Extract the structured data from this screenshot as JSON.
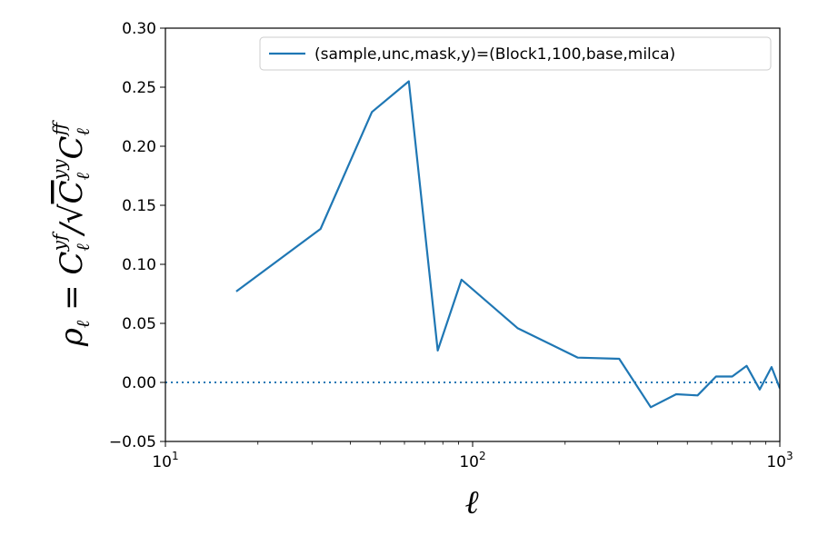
{
  "chart_data": {
    "type": "line",
    "xscale": "log",
    "xlim": [
      10,
      1000
    ],
    "ylim": [
      -0.05,
      0.3
    ],
    "xlabel": "ℓ",
    "ylabel": "ρℓ = Cℓ^yf / √(Cℓ^yy Cℓ^ff)",
    "x_ticks": [
      {
        "value": 10,
        "base": "10",
        "exp": "1"
      },
      {
        "value": 100,
        "base": "10",
        "exp": "2"
      },
      {
        "value": 1000,
        "base": "10",
        "exp": "3"
      }
    ],
    "y_ticks": [
      {
        "value": -0.05,
        "label": "−0.05"
      },
      {
        "value": 0.0,
        "label": "0.00"
      },
      {
        "value": 0.05,
        "label": "0.05"
      },
      {
        "value": 0.1,
        "label": "0.10"
      },
      {
        "value": 0.15,
        "label": "0.15"
      },
      {
        "value": 0.2,
        "label": "0.20"
      },
      {
        "value": 0.25,
        "label": "0.25"
      },
      {
        "value": 0.3,
        "label": "0.30"
      }
    ],
    "reference_line": {
      "y": 0.0,
      "style": "dotted"
    },
    "legend_position": "top-right",
    "series": [
      {
        "name": "(sample,unc,mask,y)=(Block1,100,base,milca)",
        "color": "#1f77b4",
        "x": [
          17,
          32,
          47,
          62,
          77,
          92,
          140,
          220,
          300,
          380,
          460,
          540,
          620,
          700,
          780,
          860,
          940,
          1000
        ],
        "y": [
          0.077,
          0.13,
          0.229,
          0.255,
          0.027,
          0.087,
          0.046,
          0.021,
          0.02,
          -0.021,
          -0.01,
          -0.011,
          0.005,
          0.005,
          0.014,
          -0.006,
          0.013,
          -0.005
        ]
      }
    ]
  }
}
